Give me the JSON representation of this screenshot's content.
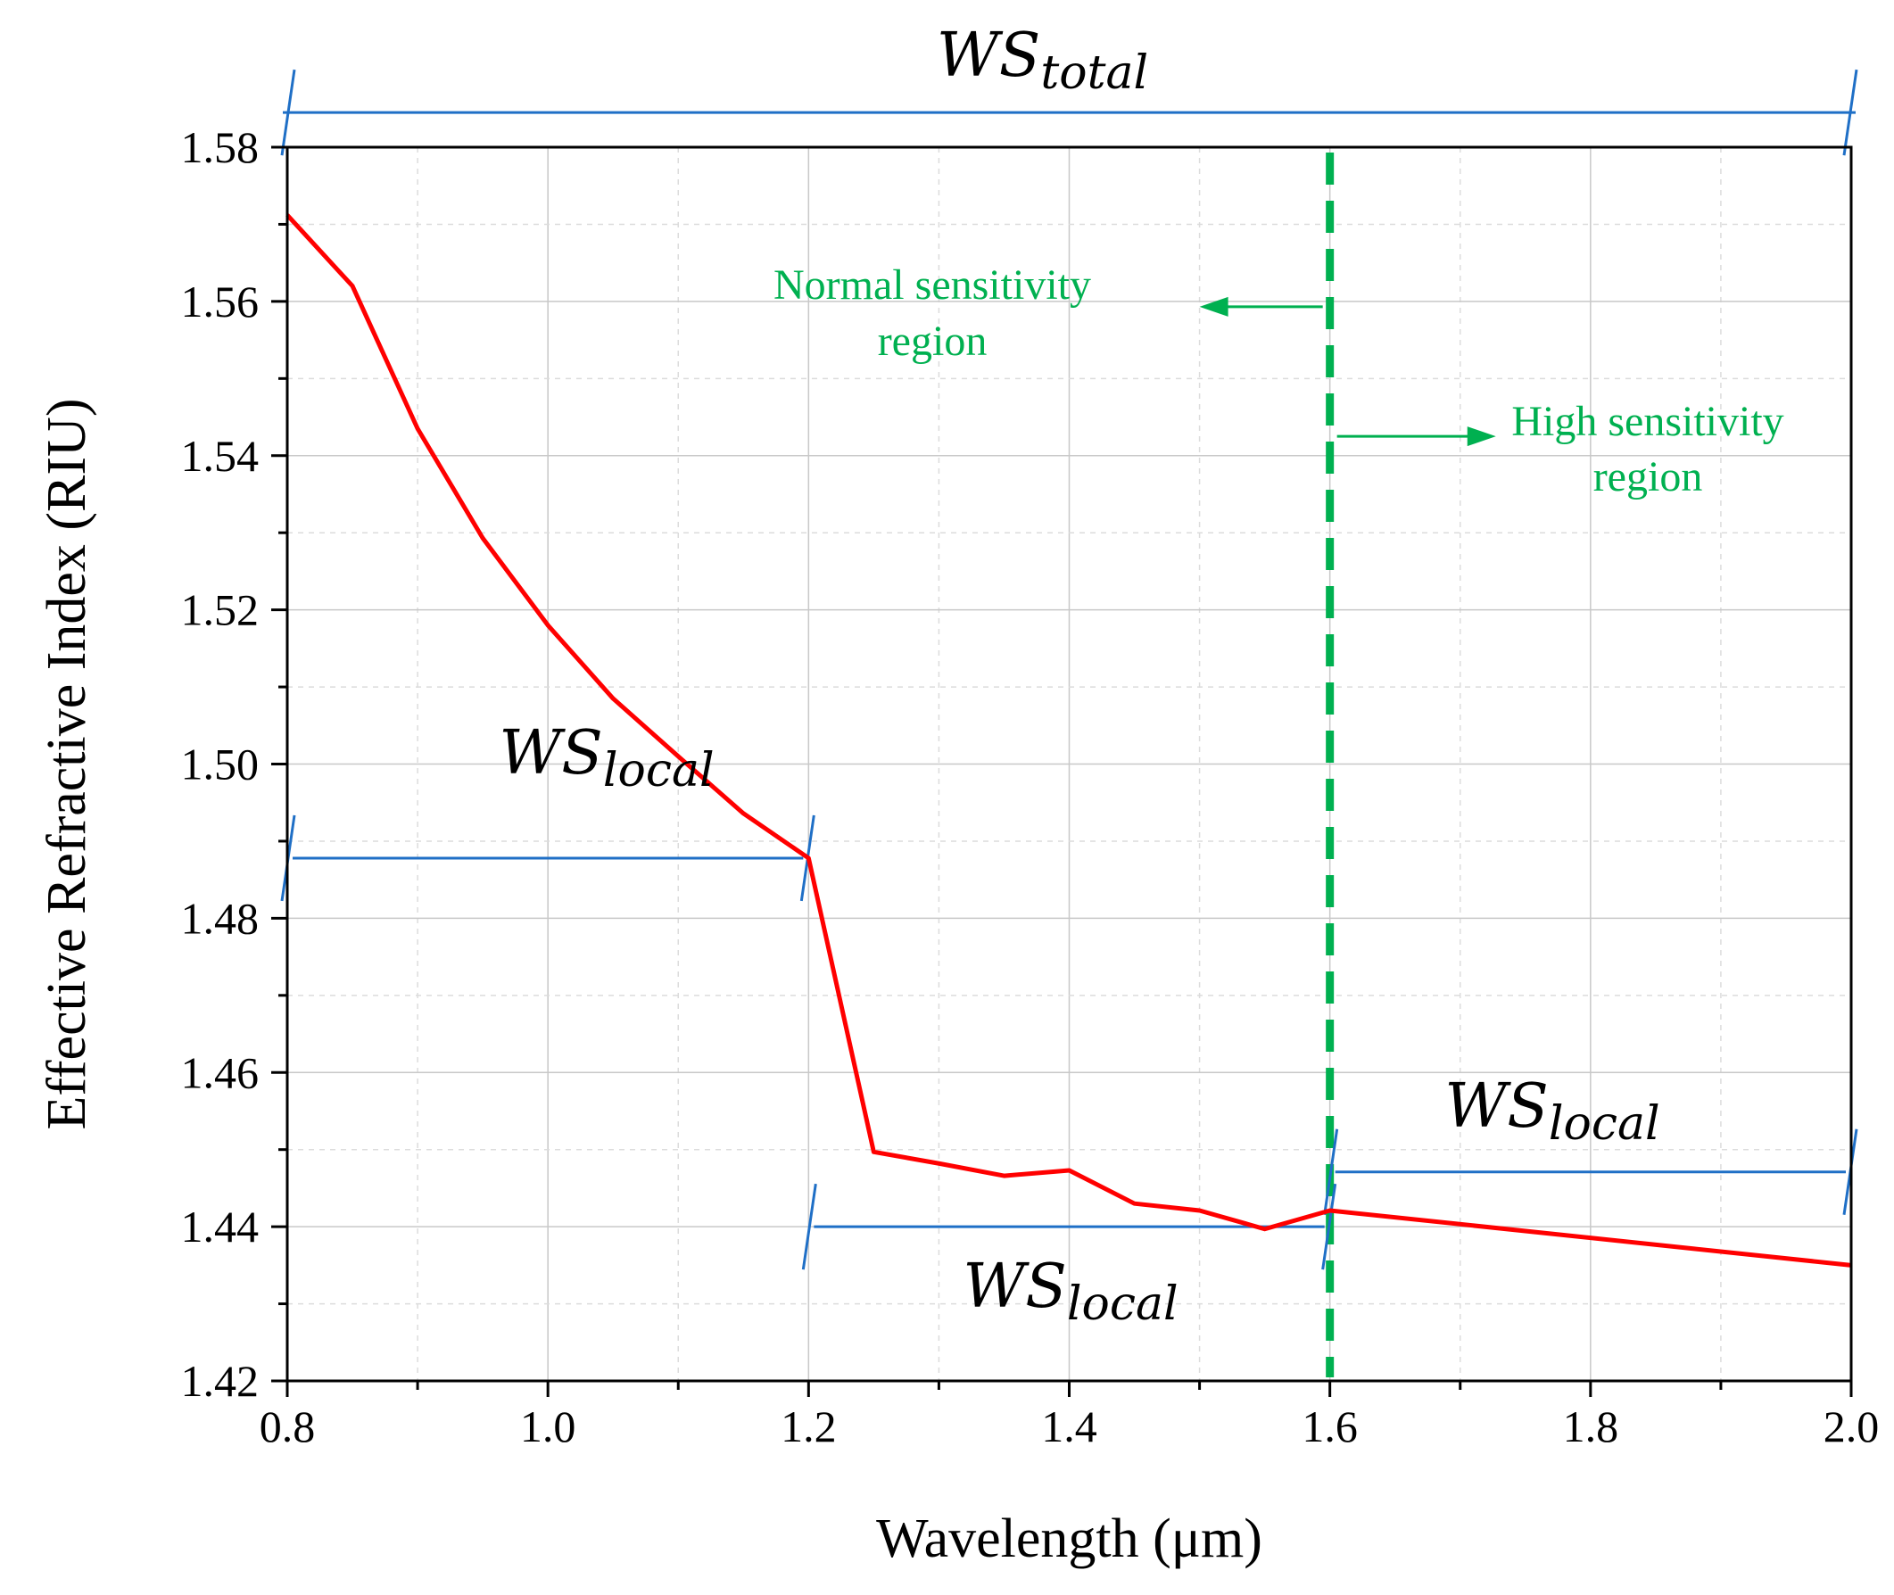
{
  "chart_data": {
    "type": "line",
    "title": "",
    "xlabel": "Wavelength (μm)",
    "ylabel": "Effective Refractive Index (RIU)",
    "xlim": [
      0.8,
      2.0
    ],
    "ylim": [
      1.42,
      1.58
    ],
    "xticks": [
      0.8,
      1.0,
      1.2,
      1.4,
      1.6,
      1.8,
      2.0
    ],
    "xtick_labels": [
      "0.8",
      "1.0",
      "1.2",
      "1.4",
      "1.6",
      "1.8",
      "2.0"
    ],
    "yticks": [
      1.42,
      1.44,
      1.46,
      1.48,
      1.5,
      1.52,
      1.54,
      1.56,
      1.58
    ],
    "ytick_labels": [
      "1.42",
      "1.44",
      "1.46",
      "1.48",
      "1.50",
      "1.52",
      "1.54",
      "1.56",
      "1.58"
    ],
    "grid": true,
    "series": [
      {
        "color": "#ff0000",
        "x": [
          0.8,
          0.85,
          0.9,
          0.95,
          1.0,
          1.05,
          1.1,
          1.15,
          1.2,
          1.25,
          1.3,
          1.35,
          1.4,
          1.45,
          1.5,
          1.55,
          1.6,
          2.0
        ],
        "y": [
          1.5712,
          1.562,
          1.5435,
          1.5293,
          1.518,
          1.5085,
          1.501,
          1.4936,
          1.4878,
          1.4497,
          1.4482,
          1.4466,
          1.4473,
          1.443,
          1.4421,
          1.4397,
          1.4421,
          1.435
        ]
      }
    ],
    "threshold": {
      "x": 1.6,
      "color": "#00b050",
      "style": "dashed"
    },
    "annotations": {
      "ws_main": "WS",
      "ws_total_sub": "total",
      "ws_local_sub": "local",
      "normal_region": [
        "Normal sensitivity",
        "region"
      ],
      "high_region": [
        "High sensitivity",
        "region"
      ],
      "region_color": "#00b050",
      "span_color": "#1f6fc6",
      "spans": [
        {
          "name": "ws-total",
          "x0": 0.8,
          "x1": 2.0,
          "y": 1.5845
        },
        {
          "name": "ws-local-1",
          "x0": 0.8,
          "x1": 1.2,
          "y": 1.4878
        },
        {
          "name": "ws-local-2",
          "x0": 1.2,
          "x1": 1.6,
          "y": 1.44
        },
        {
          "name": "ws-local-3",
          "x0": 1.6,
          "x1": 2.0,
          "y": 1.4471
        }
      ]
    }
  }
}
